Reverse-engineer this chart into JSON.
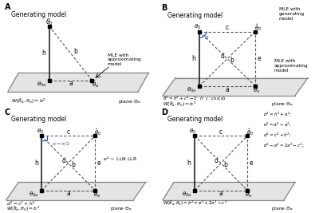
{
  "panels": [
    "A",
    "B",
    "C",
    "D"
  ],
  "bg_color": "#ffffff",
  "plane_fill": "#e0e0e0",
  "plane_edge": "#888888",
  "solid_color": "#111111",
  "dash_color": "#555555",
  "blue_color": "#4455cc",
  "label_fs": 5.0,
  "title_fs": 5.5,
  "panel_letter_fs": 7.0
}
